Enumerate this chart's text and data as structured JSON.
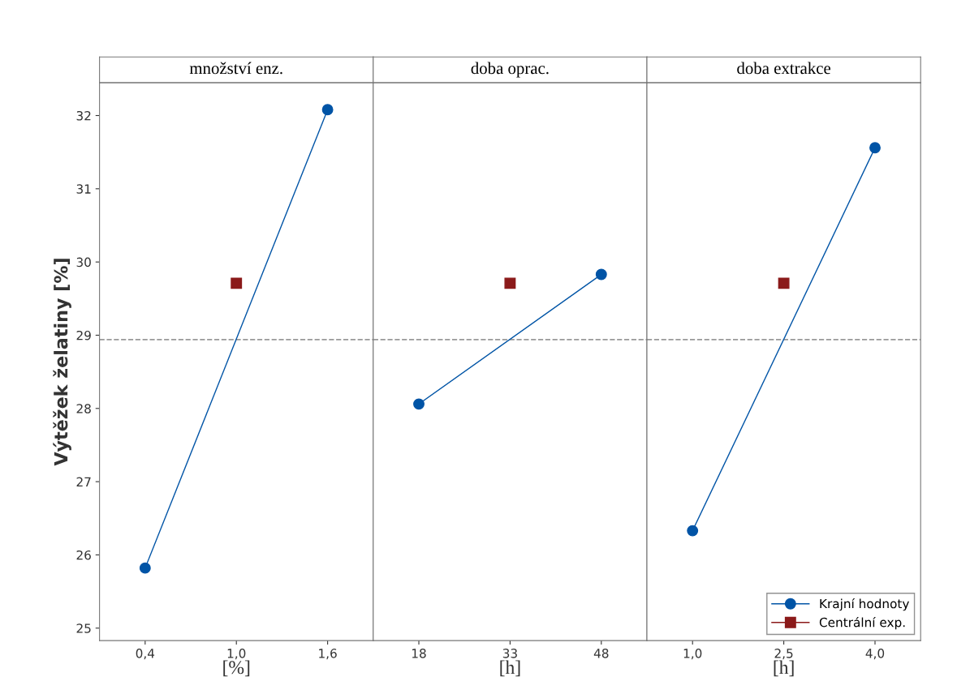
{
  "chart_data": [
    {
      "type": "line",
      "title": "množství enz.",
      "xlabel": "[%]",
      "ylabel": "Výtěžek želatiny [%]",
      "xlim": [
        0.1,
        1.9
      ],
      "xticks": [
        {
          "value": 0.4,
          "label": "0,4"
        },
        {
          "value": 1.0,
          "label": "1,0"
        },
        {
          "value": 1.6,
          "label": "1,6"
        }
      ],
      "ylim": [
        24.83,
        32.45
      ],
      "yticks": [
        25,
        26,
        27,
        28,
        29,
        30,
        31,
        32
      ],
      "grid": false,
      "legend": false,
      "series": [
        {
          "color": "#0054a6",
          "marker": "circle",
          "x": [
            0.4,
            1.6
          ],
          "values": [
            25.82,
            32.08
          ]
        },
        {
          "color": "#8b1a1a",
          "marker": "square",
          "x": [
            1.0
          ],
          "values": [
            29.71
          ]
        }
      ],
      "ref_lines": [
        {
          "axis": "y",
          "value": 28.94,
          "color": "#999999",
          "line_style": "dashed"
        }
      ]
    },
    {
      "type": "line",
      "title": "doba oprac.",
      "xlabel": "[h]",
      "xlim": [
        10.5,
        55.5
      ],
      "xticks": [
        18,
        33,
        48
      ],
      "ylim": [
        24.83,
        32.45
      ],
      "yticks": [
        25,
        26,
        27,
        28,
        29,
        30,
        31,
        32
      ],
      "tick_labels": "x",
      "grid": false,
      "legend": false,
      "series": [
        {
          "color": "#0054a6",
          "marker": "circle",
          "x": [
            18,
            48
          ],
          "values": [
            28.06,
            29.83
          ]
        },
        {
          "color": "#8b1a1a",
          "marker": "square",
          "x": [
            33
          ],
          "values": [
            29.71
          ]
        }
      ],
      "ref_lines": [
        {
          "axis": "y",
          "value": 28.94,
          "color": "#999999",
          "line_style": "dashed"
        }
      ]
    },
    {
      "type": "line",
      "title": "doba extrakce",
      "xlabel": "[h]",
      "xlim": [
        0.25,
        4.75
      ],
      "xticks": [
        {
          "value": 1.0,
          "label": "1,0"
        },
        {
          "value": 2.5,
          "label": "2,5"
        },
        {
          "value": 4.0,
          "label": "4,0"
        }
      ],
      "ylim": [
        24.83,
        32.45
      ],
      "yticks": [
        25,
        26,
        27,
        28,
        29,
        30,
        31,
        32
      ],
      "tick_labels": "x",
      "grid": false,
      "legend": "bottom right",
      "series": [
        {
          "name": "Krajní hodnoty",
          "color": "#0054a6",
          "marker": "circle",
          "x": [
            1.0,
            4.0
          ],
          "values": [
            26.33,
            31.56
          ]
        },
        {
          "name": "Centrální exp.",
          "color": "#8b1a1a",
          "marker": "square",
          "x": [
            2.5
          ],
          "values": [
            29.71
          ]
        }
      ],
      "ref_lines": [
        {
          "axis": "y",
          "value": 28.94,
          "color": "#999999",
          "line_style": "dashed"
        }
      ]
    }
  ]
}
